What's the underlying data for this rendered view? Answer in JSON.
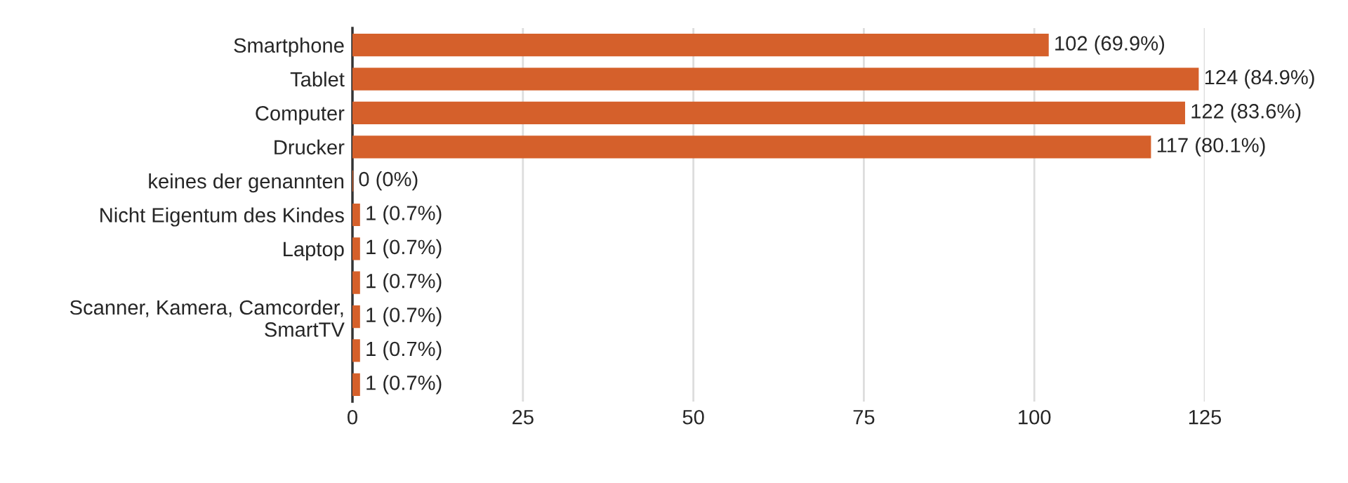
{
  "chart_data": {
    "type": "bar",
    "orientation": "horizontal",
    "categories": [
      "Smartphone",
      "Tablet",
      "Computer",
      "Drucker",
      "keines der genannten",
      "Nicht Eigentum des Kindes",
      "Laptop",
      null,
      "Scanner, Kamera, Camcorder,\nSmartTV",
      null,
      null
    ],
    "values": [
      102,
      124,
      122,
      117,
      0,
      1,
      1,
      1,
      1,
      1,
      1
    ],
    "value_labels": [
      "102 (69.9%)",
      "124 (84.9%)",
      "122 (83.6%)",
      "117 (80.1%)",
      "0 (0%)",
      "1 (0.7%)",
      "1 (0.7%)",
      "1 (0.7%)",
      "1 (0.7%)",
      "1 (0.7%)",
      "1 (0.7%)"
    ],
    "color": "#d5602b",
    "xlim": [
      0,
      125
    ],
    "xticks": [
      0,
      25,
      50,
      75,
      100,
      125
    ],
    "grid": "x",
    "legend": false
  }
}
